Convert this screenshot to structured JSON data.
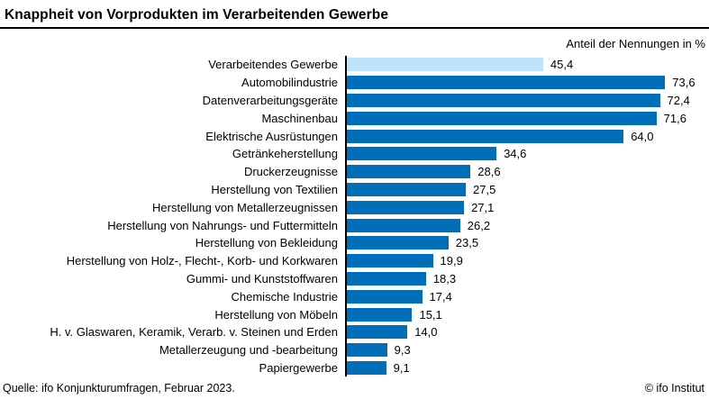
{
  "header": {
    "title": "Knappheit von Vorprodukten im Verarbeitenden Gewerbe",
    "subtitle": "Anteil der Nennungen in %"
  },
  "footer": {
    "source": "Quelle: ifo Konjunkturumfragen, Februar 2023.",
    "copyright": "© ifo Institut"
  },
  "colors": {
    "bar": "#006EB9",
    "bar_highlight": "#BEE3FA",
    "axis": "#000000",
    "text": "#000000"
  },
  "chart_data": {
    "type": "bar",
    "orientation": "horizontal",
    "title": "Knappheit von Vorprodukten im Verarbeitenden Gewerbe",
    "subtitle": "Anteil der Nennungen in %",
    "xlabel": "Anteil der Nennungen in %",
    "ylabel": "",
    "xlim": [
      0,
      80
    ],
    "grid": false,
    "legend": false,
    "highlight_index": 0,
    "categories": [
      "Verarbeitendes Gewerbe",
      "Automobilindustrie",
      "Datenverarbeitungsgeräte",
      "Maschinenbau",
      "Elektrische Ausrüstungen",
      "Getränkeherstellung",
      "Druckerzeugnisse",
      "Herstellung von Textilien",
      "Herstellung von Metallerzeugnissen",
      "Herstellung von Nahrungs- und Futtermitteln",
      "Herstellung von Bekleidung",
      "Herstellung von Holz-, Flecht-, Korb- und Korkwaren",
      "Gummi- und Kunststoffwaren",
      "Chemische Industrie",
      "Herstellung von Möbeln",
      "H. v. Glaswaren, Keramik, Verarb. v. Steinen und Erden",
      "Metallerzeugung und -bearbeitung",
      "Papiergewerbe"
    ],
    "values": [
      45.4,
      73.6,
      72.4,
      71.6,
      64.0,
      34.6,
      28.6,
      27.5,
      27.1,
      26.2,
      23.5,
      19.9,
      18.3,
      17.4,
      15.1,
      14.0,
      9.3,
      9.1
    ],
    "value_labels": [
      "45,4",
      "73,6",
      "72,4",
      "71,6",
      "64,0",
      "34,6",
      "28,6",
      "27,5",
      "27,1",
      "26,2",
      "23,5",
      "19,9",
      "18,3",
      "17,4",
      "15,1",
      "14,0",
      "9,3",
      "9,1"
    ]
  }
}
